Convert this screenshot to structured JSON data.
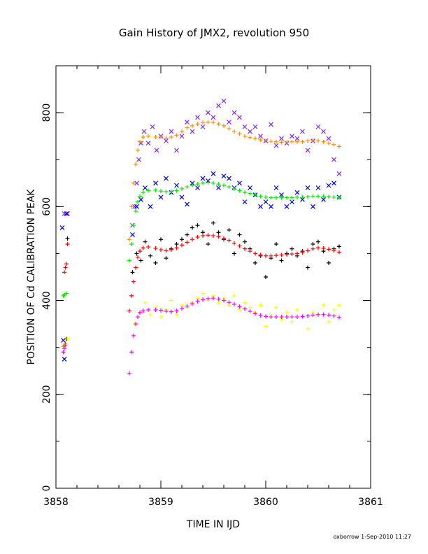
{
  "chart_data": {
    "type": "scatter",
    "title": "Gain History of JMX2, revolution 950",
    "xlabel": "TIME IN IJD",
    "ylabel": "POSITION OF Cd CALIBRATION PEAK",
    "xlim": [
      3858,
      3861
    ],
    "ylim": [
      0,
      900
    ],
    "x_ticks": [
      3858,
      3859,
      3860,
      3861
    ],
    "y_ticks": [
      0,
      200,
      400,
      600,
      800
    ],
    "x_minor_step": 0.2,
    "y_minor_step": 100,
    "grid": false,
    "footer": "oxborrow  1-Sep-2010 11:27",
    "series": [
      {
        "color": "#8a2be2",
        "marker": "x",
        "role": "scattered points around orange curve",
        "x": [
          3858.08,
          3858.11,
          3858.73,
          3858.75,
          3858.77,
          3858.79,
          3858.81,
          3858.84,
          3858.88,
          3858.92,
          3858.96,
          3859.0,
          3859.05,
          3859.1,
          3859.15,
          3859.2,
          3859.25,
          3859.3,
          3859.35,
          3859.4,
          3859.45,
          3859.5,
          3859.55,
          3859.6,
          3859.65,
          3859.7,
          3859.75,
          3859.8,
          3859.85,
          3859.9,
          3859.95,
          3860.0,
          3860.05,
          3860.1,
          3860.15,
          3860.2,
          3860.25,
          3860.3,
          3860.35,
          3860.4,
          3860.45,
          3860.5,
          3860.55,
          3860.6,
          3860.65,
          3860.7
        ],
        "y": [
          585,
          585,
          560,
          600,
          650,
          700,
          735,
          760,
          735,
          770,
          720,
          750,
          740,
          760,
          720,
          750,
          780,
          760,
          790,
          770,
          800,
          790,
          815,
          825,
          780,
          800,
          790,
          770,
          760,
          770,
          750,
          740,
          775,
          730,
          745,
          735,
          750,
          745,
          760,
          720,
          740,
          770,
          760,
          745,
          700,
          670
        ]
      },
      {
        "color": "#ff8c00",
        "marker": "+",
        "role": "smoothed upper curve",
        "x": [
          3858.07,
          3858.08,
          3858.09,
          3858.7,
          3858.72,
          3858.74,
          3858.76,
          3858.78,
          3858.8,
          3858.83,
          3858.88,
          3858.95,
          3859.0,
          3859.05,
          3859.1,
          3859.15,
          3859.2,
          3859.25,
          3859.3,
          3859.35,
          3859.4,
          3859.45,
          3859.5,
          3859.55,
          3859.6,
          3859.65,
          3859.7,
          3859.75,
          3859.8,
          3859.85,
          3859.9,
          3859.95,
          3860.0,
          3860.05,
          3860.1,
          3860.15,
          3860.2,
          3860.25,
          3860.3,
          3860.35,
          3860.4,
          3860.45,
          3860.5,
          3860.55,
          3860.6,
          3860.65,
          3860.7
        ],
        "y": [
          302,
          305,
          308,
          530,
          600,
          650,
          690,
          720,
          738,
          748,
          750,
          748,
          749,
          746,
          748,
          752,
          760,
          768,
          772,
          776,
          779,
          780,
          779,
          776,
          772,
          766,
          760,
          755,
          750,
          747,
          745,
          742,
          740,
          739,
          738,
          737,
          737,
          738,
          738,
          738,
          740,
          741,
          740,
          738,
          735,
          732,
          728
        ]
      },
      {
        "color": "#0000cd",
        "marker": "x",
        "role": "scattered points around green curve",
        "x": [
          3858.06,
          3858.07,
          3858.08,
          3858.1,
          3858.73,
          3858.77,
          3858.81,
          3858.85,
          3858.9,
          3858.95,
          3859.0,
          3859.05,
          3859.1,
          3859.15,
          3859.2,
          3859.25,
          3859.3,
          3859.35,
          3859.4,
          3859.45,
          3859.5,
          3859.55,
          3859.6,
          3859.65,
          3859.7,
          3859.75,
          3859.8,
          3859.85,
          3859.9,
          3859.95,
          3860.0,
          3860.05,
          3860.1,
          3860.15,
          3860.2,
          3860.25,
          3860.3,
          3860.35,
          3860.4,
          3860.45,
          3860.5,
          3860.55,
          3860.6,
          3860.65,
          3860.7
        ],
        "y": [
          555,
          315,
          275,
          585,
          540,
          600,
          615,
          640,
          600,
          650,
          620,
          660,
          630,
          645,
          620,
          605,
          650,
          640,
          660,
          655,
          670,
          640,
          665,
          660,
          640,
          650,
          610,
          640,
          625,
          600,
          610,
          600,
          640,
          625,
          600,
          610,
          630,
          615,
          640,
          600,
          640,
          615,
          645,
          650,
          620
        ]
      },
      {
        "color": "#00ee00",
        "marker": "+",
        "role": "smoothed middle curve",
        "x": [
          3858.07,
          3858.08,
          3858.1,
          3858.7,
          3858.72,
          3858.74,
          3858.76,
          3858.78,
          3858.8,
          3858.83,
          3858.88,
          3858.95,
          3859.0,
          3859.05,
          3859.1,
          3859.15,
          3859.2,
          3859.25,
          3859.3,
          3859.35,
          3859.4,
          3859.45,
          3859.5,
          3859.55,
          3859.6,
          3859.65,
          3859.7,
          3859.75,
          3859.8,
          3859.85,
          3859.9,
          3859.95,
          3860.0,
          3860.05,
          3860.1,
          3860.15,
          3860.2,
          3860.25,
          3860.3,
          3860.35,
          3860.4,
          3860.45,
          3860.5,
          3860.55,
          3860.6,
          3860.65,
          3860.7
        ],
        "y": [
          410,
          412,
          415,
          485,
          520,
          560,
          590,
          610,
          622,
          630,
          634,
          635,
          633,
          632,
          632,
          634,
          638,
          642,
          645,
          648,
          650,
          651,
          650,
          648,
          645,
          642,
          638,
          634,
          630,
          628,
          625,
          622,
          620,
          619,
          619,
          619,
          619,
          619,
          620,
          620,
          621,
          622,
          622,
          622,
          621,
          620,
          619
        ]
      },
      {
        "color": "#000000",
        "marker": "+",
        "role": "scattered points around red curve",
        "x": [
          3858.1,
          3858.11,
          3858.73,
          3858.77,
          3858.81,
          3858.85,
          3858.9,
          3858.95,
          3859.0,
          3859.05,
          3859.1,
          3859.15,
          3859.2,
          3859.25,
          3859.3,
          3859.35,
          3859.4,
          3859.45,
          3859.5,
          3859.55,
          3859.6,
          3859.65,
          3859.7,
          3859.75,
          3859.8,
          3859.85,
          3859.9,
          3859.95,
          3860.0,
          3860.05,
          3860.1,
          3860.15,
          3860.2,
          3860.25,
          3860.3,
          3860.35,
          3860.4,
          3860.45,
          3860.5,
          3860.55,
          3860.6,
          3860.65,
          3860.7
        ],
        "y": [
          318,
          532,
          460,
          500,
          485,
          525,
          495,
          480,
          530,
          490,
          510,
          520,
          530,
          540,
          555,
          560,
          545,
          520,
          565,
          545,
          530,
          550,
          500,
          540,
          525,
          510,
          480,
          495,
          450,
          490,
          520,
          485,
          500,
          510,
          495,
          505,
          470,
          520,
          525,
          505,
          480,
          510,
          515
        ]
      },
      {
        "color": "#ff0000",
        "marker": "+",
        "role": "smoothed lower-middle curve",
        "x": [
          3858.08,
          3858.09,
          3858.1,
          3858.11,
          3858.7,
          3858.72,
          3858.74,
          3858.76,
          3858.78,
          3858.8,
          3858.83,
          3858.88,
          3858.95,
          3859.0,
          3859.05,
          3859.1,
          3859.15,
          3859.2,
          3859.25,
          3859.3,
          3859.35,
          3859.4,
          3859.45,
          3859.5,
          3859.55,
          3859.6,
          3859.65,
          3859.7,
          3859.75,
          3859.8,
          3859.85,
          3859.9,
          3859.95,
          3860.0,
          3860.05,
          3860.1,
          3860.15,
          3860.2,
          3860.25,
          3860.3,
          3860.35,
          3860.4,
          3860.45,
          3860.5,
          3860.55,
          3860.6,
          3860.65,
          3860.7
        ],
        "y": [
          460,
          470,
          478,
          520,
          378,
          410,
          440,
          470,
          492,
          505,
          512,
          514,
          511,
          508,
          506,
          508,
          512,
          518,
          524,
          530,
          535,
          538,
          539,
          538,
          536,
          532,
          528,
          522,
          516,
          510,
          505,
          500,
          497,
          495,
          495,
          496,
          497,
          498,
          499,
          500,
          502,
          506,
          510,
          512,
          511,
          509,
          506,
          503
        ]
      },
      {
        "color": "#ffff00",
        "marker": "+",
        "role": "scattered points around magenta curve",
        "x": [
          3858.11,
          3858.75,
          3858.8,
          3858.85,
          3858.9,
          3858.95,
          3859.0,
          3859.05,
          3859.1,
          3859.15,
          3859.2,
          3859.25,
          3859.3,
          3859.35,
          3859.4,
          3859.45,
          3859.5,
          3859.55,
          3859.6,
          3859.65,
          3859.7,
          3859.75,
          3859.8,
          3859.85,
          3859.9,
          3859.95,
          3860.0,
          3860.05,
          3860.1,
          3860.15,
          3860.2,
          3860.25,
          3860.3,
          3860.35,
          3860.4,
          3860.45,
          3860.5,
          3860.55,
          3860.6,
          3860.65,
          3860.7
        ],
        "y": [
          318,
          350,
          375,
          395,
          370,
          385,
          365,
          380,
          400,
          370,
          390,
          385,
          395,
          405,
          415,
          400,
          410,
          395,
          405,
          390,
          410,
          380,
          395,
          385,
          375,
          390,
          345,
          370,
          385,
          360,
          375,
          355,
          380,
          365,
          340,
          375,
          370,
          390,
          355,
          380,
          390
        ]
      },
      {
        "color": "#ff00ff",
        "marker": "+",
        "role": "smoothed lower curve",
        "x": [
          3858.07,
          3858.08,
          3858.09,
          3858.7,
          3858.72,
          3858.74,
          3858.76,
          3858.78,
          3858.8,
          3858.83,
          3858.88,
          3858.95,
          3859.0,
          3859.05,
          3859.1,
          3859.15,
          3859.2,
          3859.25,
          3859.3,
          3859.35,
          3859.4,
          3859.45,
          3859.5,
          3859.55,
          3859.6,
          3859.65,
          3859.7,
          3859.75,
          3859.8,
          3859.85,
          3859.9,
          3859.95,
          3860.0,
          3860.05,
          3860.1,
          3860.15,
          3860.2,
          3860.25,
          3860.3,
          3860.35,
          3860.4,
          3860.45,
          3860.5,
          3860.55,
          3860.6,
          3860.65,
          3860.7
        ],
        "y": [
          290,
          298,
          305,
          245,
          290,
          325,
          350,
          365,
          374,
          378,
          380,
          380,
          379,
          377,
          376,
          378,
          383,
          388,
          393,
          398,
          402,
          404,
          405,
          403,
          400,
          396,
          392,
          387,
          382,
          377,
          372,
          368,
          366,
          365,
          365,
          365,
          365,
          365,
          365,
          366,
          367,
          369,
          370,
          370,
          369,
          367,
          364
        ]
      }
    ]
  }
}
